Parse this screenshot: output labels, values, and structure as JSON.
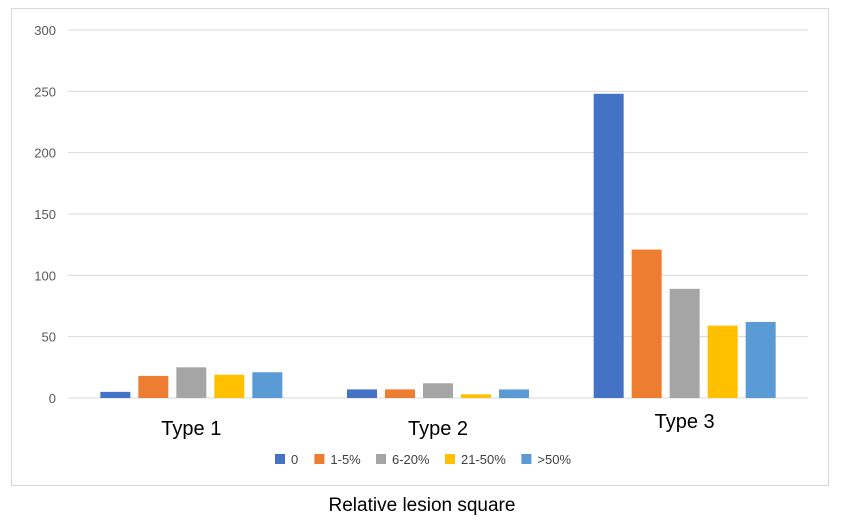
{
  "chart_data": {
    "type": "bar",
    "title": "",
    "xlabel": "Relative lesion square",
    "ylabel": "",
    "ylim": [
      0,
      300
    ],
    "yticks": [
      0,
      50,
      100,
      150,
      200,
      250,
      300
    ],
    "grid": true,
    "legend_position": "bottom",
    "categories": [
      "Type 1",
      "Type 2",
      "Type 3"
    ],
    "series": [
      {
        "name": "0",
        "color": "#4472c4",
        "values": [
          5,
          7,
          248
        ]
      },
      {
        "name": "1-5%",
        "color": "#ed7d31",
        "values": [
          18,
          7,
          121
        ]
      },
      {
        "name": "6-20%",
        "color": "#a5a5a5",
        "values": [
          25,
          12,
          89
        ]
      },
      {
        "name": "21-50%",
        "color": "#ffc000",
        "values": [
          19,
          3,
          59
        ]
      },
      {
        "name": ">50%",
        "color": "#5b9bd5",
        "values": [
          21,
          7,
          62
        ]
      }
    ]
  }
}
